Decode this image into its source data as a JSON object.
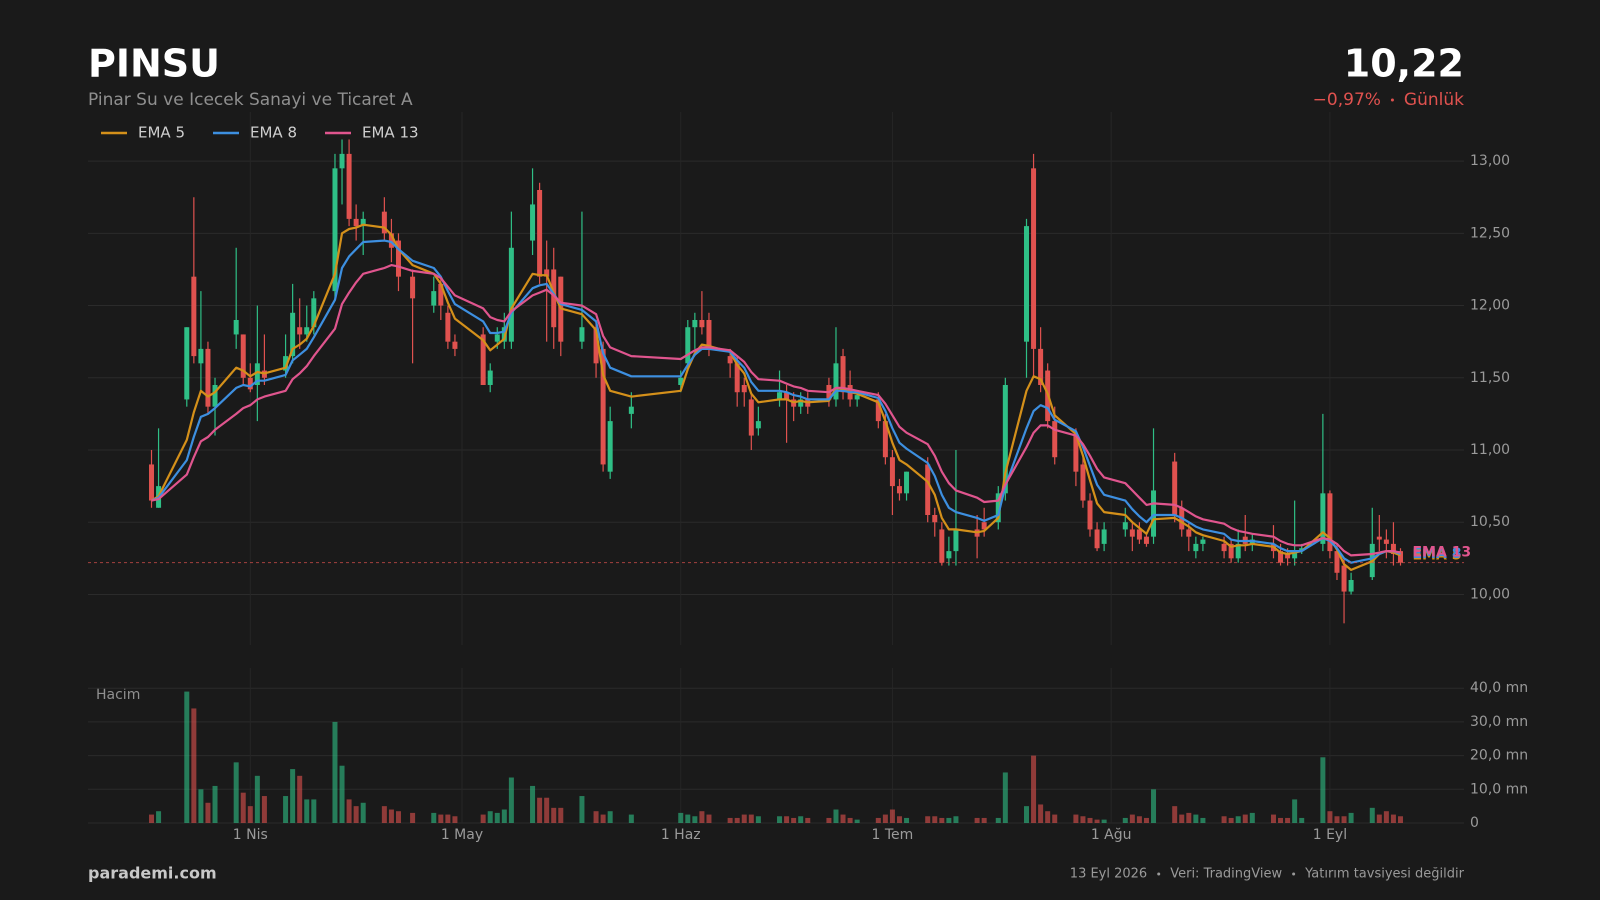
{
  "header": {
    "title": "PINSU",
    "subtitle": "Pinar Su ve Icecek Sanayi ve Ticaret A",
    "period": "Günlük"
  },
  "footer": {
    "brand": "parademi.com",
    "date": "13 Eyl 2026",
    "source": "Veri: TradingView",
    "disclaimer": "Yatırım tavsiyesi değildir"
  },
  "chart_data": {
    "type": "candlestick",
    "last_price": {
      "value": 10.22,
      "label": "10,22"
    },
    "change": {
      "value": -0.97,
      "label": "−0,97%"
    },
    "up_color": "#2fbf86",
    "down_color": "#e0524f",
    "grid": true,
    "legend": "top-left",
    "xlim": [
      "2026-03-09",
      "2026-09-20"
    ],
    "xticks": [
      {
        "value": "2026-04-01",
        "label": "1 Nis"
      },
      {
        "value": "2026-05-01",
        "label": "1 May"
      },
      {
        "value": "2026-06-01",
        "label": "1 Haz"
      },
      {
        "value": "2026-07-01",
        "label": "1 Tem"
      },
      {
        "value": "2026-08-01",
        "label": "1 Ağu"
      },
      {
        "value": "2026-09-01",
        "label": "1 Eyl"
      }
    ],
    "ylim": [
      9.65,
      13.34
    ],
    "yticks": [
      {
        "value": 10,
        "label": "10,00"
      },
      {
        "value": 10.5,
        "label": "10,50"
      },
      {
        "value": 11,
        "label": "11,00"
      },
      {
        "value": 11.5,
        "label": "11,50"
      },
      {
        "value": 12,
        "label": "12,00"
      },
      {
        "value": 12.5,
        "label": "12,50"
      },
      {
        "value": 13,
        "label": "13,00"
      }
    ],
    "volume_label": "Hacim",
    "volume_ylim": [
      0,
      46
    ],
    "volume_yticks": [
      0,
      {
        "value": 10,
        "label": "10,0 mn"
      },
      {
        "value": 20,
        "label": "20,0 mn"
      },
      {
        "value": 30,
        "label": "30,0 mn"
      },
      {
        "value": 40,
        "label": "40,0 mn"
      }
    ],
    "dates": [
      "2026-03-18",
      "2026-03-19",
      "2026-03-23",
      "2026-03-24",
      "2026-03-25",
      "2026-03-26",
      "2026-03-27",
      "2026-03-30",
      "2026-03-31",
      "2026-04-01",
      "2026-04-02",
      "2026-04-03",
      "2026-04-06",
      "2026-04-07",
      "2026-04-08",
      "2026-04-09",
      "2026-04-10",
      "2026-04-13",
      "2026-04-14",
      "2026-04-15",
      "2026-04-16",
      "2026-04-17",
      "2026-04-20",
      "2026-04-21",
      "2026-04-22",
      "2026-04-24",
      "2026-04-27",
      "2026-04-28",
      "2026-04-29",
      "2026-04-30",
      "2026-05-04",
      "2026-05-05",
      "2026-05-06",
      "2026-05-07",
      "2026-05-08",
      "2026-05-11",
      "2026-05-12",
      "2026-05-13",
      "2026-05-14",
      "2026-05-15",
      "2026-05-18",
      "2026-05-20",
      "2026-05-21",
      "2026-05-22",
      "2026-05-25",
      "2026-06-01",
      "2026-06-02",
      "2026-06-03",
      "2026-06-04",
      "2026-06-05",
      "2026-06-08",
      "2026-06-09",
      "2026-06-10",
      "2026-06-11",
      "2026-06-12",
      "2026-06-15",
      "2026-06-16",
      "2026-06-17",
      "2026-06-18",
      "2026-06-19",
      "2026-06-22",
      "2026-06-23",
      "2026-06-24",
      "2026-06-25",
      "2026-06-26",
      "2026-06-29",
      "2026-06-30",
      "2026-07-01",
      "2026-07-02",
      "2026-07-03",
      "2026-07-06",
      "2026-07-07",
      "2026-07-08",
      "2026-07-09",
      "2026-07-10",
      "2026-07-13",
      "2026-07-14",
      "2026-07-16",
      "2026-07-17",
      "2026-07-20",
      "2026-07-21",
      "2026-07-22",
      "2026-07-23",
      "2026-07-24",
      "2026-07-27",
      "2026-07-28",
      "2026-07-29",
      "2026-07-30",
      "2026-07-31",
      "2026-08-03",
      "2026-08-04",
      "2026-08-05",
      "2026-08-06",
      "2026-08-07",
      "2026-08-10",
      "2026-08-11",
      "2026-08-12",
      "2026-08-13",
      "2026-08-14",
      "2026-08-17",
      "2026-08-18",
      "2026-08-19",
      "2026-08-20",
      "2026-08-21",
      "2026-08-24",
      "2026-08-25",
      "2026-08-26",
      "2026-08-27",
      "2026-08-28",
      "2026-08-31",
      "2026-09-01",
      "2026-09-02",
      "2026-09-03",
      "2026-09-04",
      "2026-09-07",
      "2026-09-08",
      "2026-09-09",
      "2026-09-10",
      "2026-09-11"
    ],
    "open": [
      10.9,
      10.6,
      11.35,
      12.2,
      11.6,
      11.7,
      11.3,
      11.8,
      11.8,
      11.5,
      11.45,
      11.55,
      11.55,
      11.65,
      11.85,
      11.8,
      11.85,
      12.1,
      12.95,
      13.05,
      12.6,
      12.55,
      12.65,
      12.5,
      12.45,
      12.2,
      12.0,
      12.15,
      11.95,
      11.75,
      11.8,
      11.45,
      11.75,
      11.75,
      11.75,
      12.45,
      12.8,
      12.25,
      12.25,
      12.2,
      11.75,
      11.85,
      11.7,
      10.85,
      11.25,
      11.45,
      11.6,
      11.85,
      11.9,
      11.9,
      11.65,
      11.6,
      11.45,
      11.35,
      11.15,
      11.35,
      11.4,
      11.35,
      11.3,
      11.35,
      11.45,
      11.35,
      11.65,
      11.45,
      11.35,
      11.35,
      11.2,
      10.95,
      10.75,
      10.7,
      10.9,
      10.55,
      10.45,
      10.25,
      10.3,
      10.45,
      10.5,
      10.5,
      10.7,
      11.75,
      12.95,
      11.7,
      11.55,
      11.2,
      11.1,
      10.9,
      10.65,
      10.45,
      10.35,
      10.45,
      10.45,
      10.45,
      10.4,
      10.4,
      10.92,
      10.6,
      10.45,
      10.3,
      10.35,
      10.35,
      10.35,
      10.25,
      10.4,
      10.35,
      10.35,
      10.3,
      10.28,
      10.25,
      10.3,
      10.35,
      10.7,
      10.3,
      10.2,
      10.02,
      10.12,
      10.4,
      10.38,
      10.35,
      10.3
    ],
    "high": [
      11.0,
      11.15,
      11.85,
      12.75,
      12.1,
      11.75,
      11.5,
      12.4,
      11.8,
      11.6,
      12.0,
      11.8,
      11.8,
      12.15,
      12.05,
      12.0,
      12.1,
      13.05,
      13.15,
      13.15,
      12.7,
      12.65,
      12.75,
      12.6,
      12.5,
      12.25,
      12.2,
      12.2,
      12.0,
      11.8,
      11.85,
      11.6,
      11.85,
      11.95,
      12.65,
      12.95,
      12.85,
      12.45,
      12.4,
      12.2,
      12.65,
      11.9,
      11.75,
      11.3,
      11.4,
      11.55,
      11.9,
      11.95,
      12.1,
      11.95,
      11.7,
      11.65,
      11.5,
      11.4,
      11.3,
      11.55,
      11.45,
      11.4,
      11.4,
      11.4,
      11.5,
      11.85,
      11.7,
      11.55,
      11.4,
      11.4,
      11.25,
      11.0,
      10.8,
      10.85,
      10.95,
      10.6,
      10.5,
      10.4,
      11.0,
      10.55,
      10.6,
      10.75,
      11.5,
      12.6,
      13.05,
      11.85,
      11.6,
      11.3,
      11.15,
      10.95,
      10.7,
      10.5,
      10.5,
      10.6,
      10.5,
      10.5,
      10.42,
      11.15,
      10.98,
      10.65,
      10.5,
      10.4,
      10.4,
      10.4,
      10.38,
      10.45,
      10.55,
      10.42,
      10.48,
      10.35,
      10.32,
      10.65,
      10.35,
      11.25,
      10.72,
      10.35,
      10.25,
      10.15,
      10.6,
      10.55,
      10.45,
      10.5,
      10.32
    ],
    "low": [
      10.6,
      10.6,
      11.3,
      11.6,
      11.4,
      11.25,
      11.1,
      11.7,
      11.45,
      11.4,
      11.2,
      11.45,
      11.5,
      11.6,
      11.7,
      11.75,
      11.8,
      12.05,
      12.7,
      12.55,
      12.45,
      12.35,
      12.45,
      12.3,
      12.1,
      11.6,
      11.95,
      11.9,
      11.7,
      11.65,
      11.45,
      11.4,
      11.7,
      11.7,
      11.7,
      12.35,
      12.15,
      11.75,
      11.7,
      11.65,
      11.7,
      11.5,
      10.85,
      10.8,
      11.15,
      11.4,
      11.55,
      11.7,
      11.8,
      11.65,
      11.5,
      11.3,
      11.3,
      11.0,
      11.1,
      11.3,
      11.05,
      11.2,
      11.25,
      11.25,
      11.3,
      11.3,
      11.35,
      11.3,
      11.3,
      11.15,
      10.9,
      10.55,
      10.65,
      10.65,
      10.5,
      10.4,
      10.2,
      10.2,
      10.2,
      10.25,
      10.4,
      10.45,
      10.65,
      11.5,
      11.5,
      11.4,
      11.15,
      10.9,
      10.75,
      10.6,
      10.4,
      10.3,
      10.3,
      10.4,
      10.3,
      10.35,
      10.33,
      10.35,
      10.5,
      10.4,
      10.3,
      10.25,
      10.3,
      10.25,
      10.22,
      10.22,
      10.3,
      10.3,
      10.25,
      10.2,
      10.2,
      10.2,
      10.28,
      10.3,
      10.25,
      10.1,
      9.8,
      10.0,
      10.1,
      10.3,
      10.25,
      10.2,
      10.2
    ],
    "close": [
      10.65,
      10.75,
      11.85,
      11.65,
      11.7,
      11.3,
      11.45,
      11.9,
      11.5,
      11.42,
      11.6,
      11.5,
      11.65,
      11.95,
      11.8,
      11.85,
      12.05,
      12.95,
      13.05,
      12.6,
      12.55,
      12.6,
      12.5,
      12.4,
      12.2,
      12.05,
      12.1,
      12.0,
      11.75,
      11.7,
      11.45,
      11.55,
      11.8,
      11.85,
      12.4,
      12.7,
      12.2,
      12.2,
      11.85,
      11.75,
      11.85,
      11.6,
      10.9,
      11.2,
      11.3,
      11.5,
      11.85,
      11.9,
      11.85,
      11.7,
      11.6,
      11.4,
      11.4,
      11.1,
      11.2,
      11.4,
      11.35,
      11.3,
      11.35,
      11.3,
      11.35,
      11.6,
      11.4,
      11.35,
      11.38,
      11.2,
      10.95,
      10.75,
      10.7,
      10.85,
      10.55,
      10.5,
      10.22,
      10.3,
      10.45,
      10.4,
      10.45,
      10.7,
      11.45,
      12.55,
      11.7,
      11.45,
      11.2,
      10.95,
      10.85,
      10.65,
      10.45,
      10.32,
      10.45,
      10.5,
      10.4,
      10.38,
      10.35,
      10.72,
      10.55,
      10.45,
      10.4,
      10.35,
      10.38,
      10.3,
      10.25,
      10.35,
      10.35,
      10.38,
      10.3,
      10.22,
      10.25,
      10.3,
      10.32,
      10.7,
      10.3,
      10.15,
      10.02,
      10.1,
      10.35,
      10.38,
      10.35,
      10.28,
      10.22
    ],
    "volume": [
      2.5,
      3.5,
      39,
      34,
      10,
      6,
      11,
      18,
      9,
      5,
      14,
      8,
      8,
      16,
      14,
      7,
      7,
      30,
      17,
      7,
      5,
      6,
      5,
      4,
      3.5,
      3,
      3,
      2.5,
      2.5,
      2,
      2.5,
      3.5,
      3,
      4,
      13.5,
      11,
      7.5,
      7.5,
      4.5,
      4.5,
      8,
      3.5,
      2.5,
      3.5,
      2.5,
      3,
      2.5,
      2,
      3.5,
      2.5,
      1.5,
      1.5,
      2.5,
      2.5,
      2,
      2,
      2,
      1.5,
      2,
      1.5,
      1.5,
      4,
      2.5,
      1.5,
      1,
      1.5,
      2.5,
      4,
      2,
      1.5,
      2,
      2,
      1.5,
      1.5,
      2,
      1.5,
      1.5,
      1.5,
      15,
      5,
      20,
      5.5,
      3.5,
      2.5,
      2.5,
      2,
      1.5,
      1,
      1,
      1.5,
      2.5,
      2,
      1.5,
      10,
      5,
      2.5,
      3,
      2.5,
      1.5,
      2,
      1.5,
      2,
      2.5,
      3,
      2.5,
      1.5,
      1.5,
      7,
      1.5,
      19.5,
      3.5,
      2,
      2,
      3,
      4.5,
      2.5,
      3.5,
      2.5,
      2
    ],
    "series": [
      {
        "name": "EMA 5",
        "color": "#d4901a",
        "values": [
          10.65,
          10.68,
          11.07,
          11.26,
          11.41,
          11.37,
          11.4,
          11.57,
          11.55,
          11.51,
          11.54,
          11.53,
          11.57,
          11.7,
          11.73,
          11.77,
          11.86,
          12.22,
          12.5,
          12.53,
          12.54,
          12.56,
          12.54,
          12.49,
          12.39,
          12.28,
          12.22,
          12.15,
          12.02,
          11.91,
          11.76,
          11.69,
          11.73,
          11.77,
          11.98,
          12.22,
          12.21,
          12.21,
          12.09,
          11.98,
          11.94,
          11.83,
          11.52,
          11.41,
          11.37,
          11.41,
          11.56,
          11.67,
          11.73,
          11.72,
          11.68,
          11.59,
          11.53,
          11.39,
          11.33,
          11.35,
          11.35,
          11.33,
          11.34,
          11.33,
          11.34,
          11.43,
          11.42,
          11.4,
          11.39,
          11.33,
          11.2,
          11.05,
          10.93,
          10.9,
          10.78,
          10.69,
          10.53,
          10.45,
          10.45,
          10.43,
          10.44,
          10.53,
          10.84,
          11.41,
          11.51,
          11.49,
          11.39,
          11.24,
          11.11,
          10.96,
          10.79,
          10.63,
          10.57,
          10.55,
          10.5,
          10.46,
          10.42,
          10.52,
          10.53,
          10.5,
          10.47,
          10.43,
          10.41,
          10.37,
          10.33,
          10.34,
          10.34,
          10.35,
          10.33,
          10.29,
          10.28,
          10.29,
          10.3,
          10.43,
          10.39,
          10.31,
          10.21,
          10.17,
          10.23,
          10.28,
          10.3,
          10.29,
          10.27
        ]
      },
      {
        "name": "EMA 8",
        "color": "#3d8fe0",
        "values": [
          10.65,
          10.67,
          10.93,
          11.09,
          11.23,
          11.25,
          11.29,
          11.43,
          11.45,
          11.44,
          11.48,
          11.48,
          11.52,
          11.62,
          11.66,
          11.7,
          11.78,
          12.04,
          12.26,
          12.34,
          12.39,
          12.44,
          12.45,
          12.44,
          12.39,
          12.31,
          12.26,
          12.2,
          12.1,
          12.01,
          11.89,
          11.81,
          11.81,
          11.82,
          11.95,
          12.12,
          12.14,
          12.15,
          12.08,
          12.01,
          11.97,
          11.89,
          11.67,
          11.57,
          11.51,
          11.51,
          11.59,
          11.66,
          11.7,
          11.7,
          11.68,
          11.62,
          11.57,
          11.47,
          11.41,
          11.41,
          11.4,
          11.38,
          11.37,
          11.35,
          11.35,
          11.41,
          11.41,
          11.4,
          11.4,
          11.36,
          11.27,
          11.15,
          11.05,
          11.01,
          10.91,
          10.82,
          10.69,
          10.6,
          10.57,
          10.53,
          10.51,
          10.55,
          10.75,
          11.15,
          11.27,
          11.31,
          11.29,
          11.21,
          11.13,
          11.02,
          10.89,
          10.76,
          10.69,
          10.65,
          10.59,
          10.54,
          10.5,
          10.55,
          10.55,
          10.53,
          10.5,
          10.47,
          10.45,
          10.42,
          10.38,
          10.37,
          10.37,
          10.37,
          10.35,
          10.32,
          10.3,
          10.3,
          10.3,
          10.39,
          10.37,
          10.32,
          10.25,
          10.22,
          10.25,
          10.28,
          10.3,
          10.3,
          10.28
        ]
      },
      {
        "name": "EMA 13",
        "color": "#e0558e",
        "values": [
          10.65,
          10.66,
          10.83,
          10.95,
          11.06,
          11.09,
          11.14,
          11.25,
          11.29,
          11.31,
          11.35,
          11.37,
          11.41,
          11.49,
          11.53,
          11.58,
          11.65,
          11.84,
          12.01,
          12.09,
          12.16,
          12.22,
          12.26,
          12.28,
          12.27,
          12.24,
          12.22,
          12.19,
          12.13,
          12.07,
          11.98,
          11.92,
          11.9,
          11.89,
          11.96,
          12.07,
          12.09,
          12.11,
          12.07,
          12.02,
          12.0,
          11.94,
          11.79,
          11.71,
          11.65,
          11.63,
          11.66,
          11.69,
          11.71,
          11.71,
          11.69,
          11.65,
          11.61,
          11.54,
          11.49,
          11.48,
          11.46,
          11.44,
          11.43,
          11.41,
          11.4,
          11.43,
          11.43,
          11.42,
          11.41,
          11.38,
          11.32,
          11.24,
          11.16,
          11.12,
          11.04,
          10.96,
          10.85,
          10.77,
          10.72,
          10.67,
          10.64,
          10.65,
          10.76,
          11.02,
          11.12,
          11.17,
          11.17,
          11.14,
          11.1,
          11.04,
          10.96,
          10.87,
          10.81,
          10.77,
          10.72,
          10.67,
          10.62,
          10.63,
          10.62,
          10.6,
          10.57,
          10.54,
          10.52,
          10.49,
          10.46,
          10.44,
          10.43,
          10.42,
          10.4,
          10.37,
          10.35,
          10.34,
          10.34,
          10.39,
          10.38,
          10.35,
          10.3,
          10.27,
          10.28,
          10.29,
          10.3,
          10.3,
          10.29
        ]
      }
    ]
  }
}
